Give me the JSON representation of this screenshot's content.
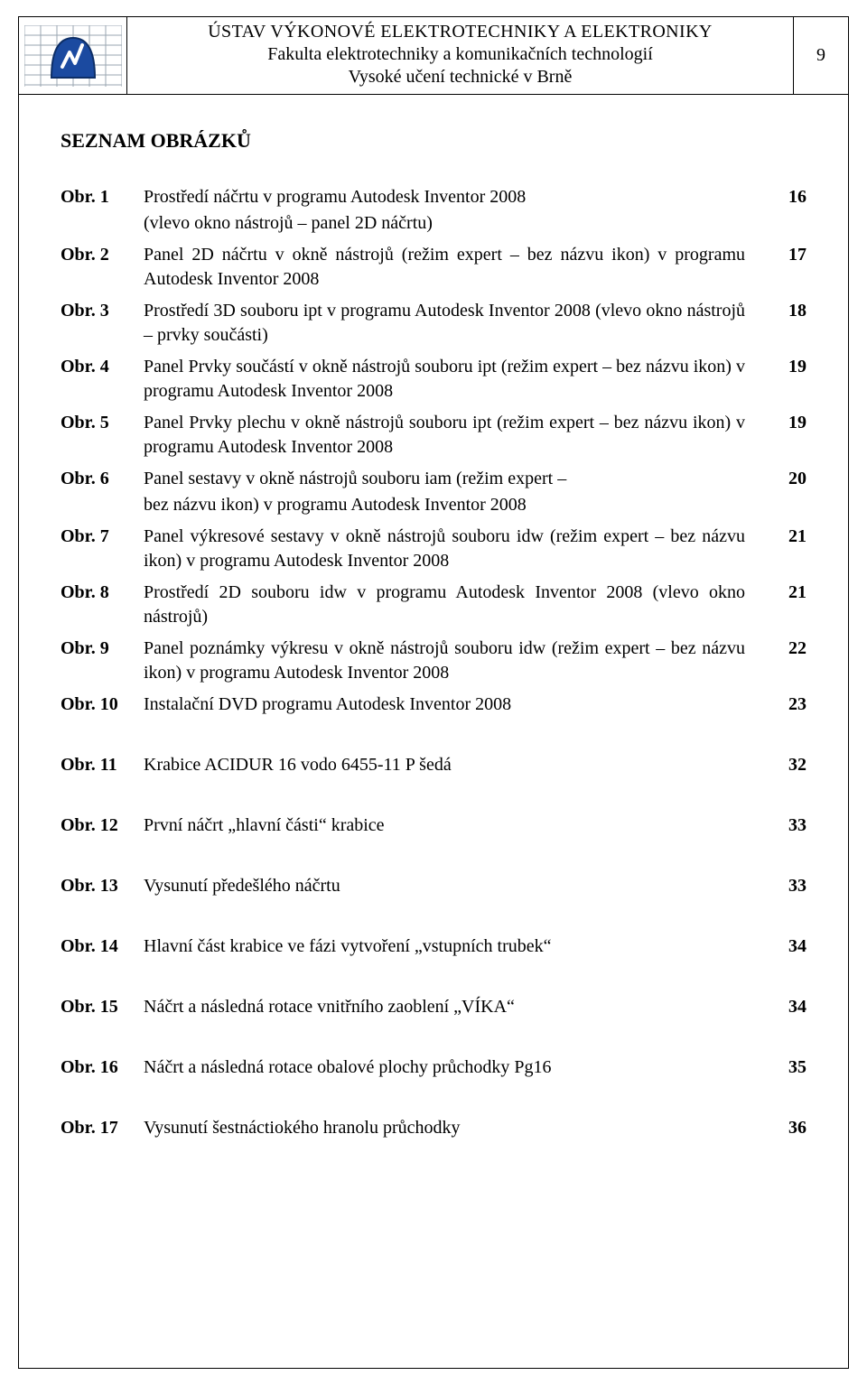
{
  "header": {
    "line1": "ÚSTAV VÝKONOVÉ ELEKTROTECHNIKY A ELEKTRONIKY",
    "line2": "Fakulta elektrotechniky a komunikačních technologií",
    "line3": "Vysoké učení technické v Brně",
    "page_number": "9"
  },
  "section_title": "SEZNAM OBRÁZKŮ",
  "entries": [
    {
      "label": "Obr. 1",
      "desc": "Prostředí náčrtu v programu Autodesk  Inventor 2008",
      "sub": "(vlevo okno nástrojů – panel 2D náčrtu)",
      "page": "16"
    },
    {
      "label": "Obr. 2",
      "desc": "Panel 2D náčrtu v okně nástrojů (režim expert – bez názvu ikon) v programu Autodesk  Inventor 2008",
      "page": "17"
    },
    {
      "label": "Obr. 3",
      "desc": "Prostředí 3D souboru ipt v programu Autodesk  Inventor 2008 (vlevo okno nástrojů – prvky součásti)",
      "page": "18"
    },
    {
      "label": "Obr. 4",
      "desc": "Panel Prvky součástí v okně nástrojů souboru ipt (režim  expert – bez názvu ikon) v programu Autodesk  Inventor 2008",
      "page": "19"
    },
    {
      "label": "Obr. 5",
      "desc": "Panel Prvky plechu v okně nástrojů souboru ipt (režim expert – bez názvu ikon)  v programu Autodesk  Inventor 2008",
      "page": "19"
    },
    {
      "label": "Obr. 6",
      "desc": "Panel sestavy v okně nástrojů souboru iam (režim expert –",
      "sub": " bez názvu ikon) v programu Autodesk  Inventor 2008",
      "page": "20"
    },
    {
      "label": "Obr. 7",
      "desc": "Panel výkresové sestavy v okně nástrojů souboru idw (režim  expert – bez názvu ikon) v programu Autodesk  Inventor 2008",
      "page": "21"
    },
    {
      "label": "Obr. 8",
      "desc": "Prostředí 2D souboru idw v programu Autodesk  Inventor 2008 (vlevo okno nástrojů)",
      "page": "21"
    },
    {
      "label": "Obr. 9",
      "desc": "Panel poznámky výkresu v okně nástrojů souboru idw (režim expert – bez názvu ikon) v programu Autodesk  Inventor 2008",
      "page": "22"
    },
    {
      "label": "Obr. 10",
      "desc": "Instalační DVD programu Autodesk Inventor 2008",
      "page": "23",
      "gap_after": true
    },
    {
      "label": "Obr. 11",
      "desc": "Krabice ACIDUR 16 vodo 6455-11 P šedá",
      "page": "32",
      "gap_after": true
    },
    {
      "label": "Obr. 12",
      "desc": "První náčrt „hlavní části“ krabice",
      "page": "33",
      "gap_after": true
    },
    {
      "label": "Obr. 13",
      "desc": "Vysunutí předešlého náčrtu",
      "page": "33",
      "gap_after": true
    },
    {
      "label": "Obr. 14",
      "desc": "Hlavní část krabice ve fázi vytvoření „vstupních trubek“",
      "page": "34",
      "gap_after": true
    },
    {
      "label": "Obr. 15",
      "desc": "Náčrt a následná rotace vnitřního zaoblení „VÍKA“",
      "page": "34",
      "gap_after": true
    },
    {
      "label": "Obr. 16",
      "desc": "Náčrt a následná rotace obalové plochy průchodky Pg16",
      "page": "35",
      "gap_after": true
    },
    {
      "label": "Obr. 17",
      "desc": "Vysunutí šestnáctiokého hranolu průchodky",
      "page": "36"
    }
  ],
  "style": {
    "font_family": "Times New Roman",
    "body_fontsize_pt": 15,
    "section_title_fontsize_pt": 16,
    "text_color": "#000000",
    "background_color": "#ffffff",
    "logo_blue": "#1b4aa0",
    "logo_grid": "#9aa5b1"
  }
}
